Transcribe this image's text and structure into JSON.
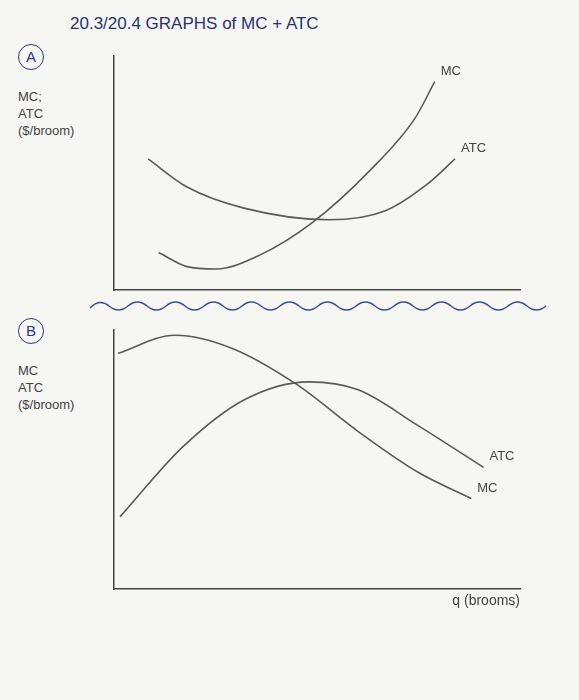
{
  "header": {
    "title": "20.3/20.4 GRAPHS of MC + ATC"
  },
  "chart_data": [
    {
      "panel": "A",
      "type": "line",
      "y_label": [
        "MC;",
        "ATC",
        "($/broom)"
      ],
      "xlim": [
        0,
        10
      ],
      "ylim": [
        0,
        10
      ],
      "tick_labels": false,
      "grid": false,
      "series": [
        {
          "name": "MC",
          "color": "#5a5a5a",
          "x": [
            1.1,
            1.8,
            2.5,
            3.6,
            4.9,
            6.3,
            7.4,
            7.9
          ],
          "values": [
            1.6,
            1.0,
            0.9,
            1.5,
            2.9,
            5.1,
            7.3,
            8.9
          ]
        },
        {
          "name": "ATC",
          "color": "#5a5a5a",
          "x": [
            0.84,
            1.8,
            3.2,
            5.3,
            6.7,
            7.7,
            8.4
          ],
          "values": [
            5.6,
            4.4,
            3.5,
            3.0,
            3.4,
            4.5,
            5.6
          ]
        }
      ]
    },
    {
      "panel": "B",
      "type": "line",
      "y_label": [
        "MC",
        "ATC",
        "($/broom)"
      ],
      "x_label": "q (brooms)",
      "xlim": [
        0,
        10
      ],
      "ylim": [
        0,
        10
      ],
      "tick_labels": false,
      "grid": false,
      "series": [
        {
          "name": "MC",
          "color": "#5a5a5a",
          "x": [
            0.1,
            1.5,
            2.9,
            4.5,
            6.0,
            7.5,
            8.8
          ],
          "values": [
            9.1,
            9.8,
            9.3,
            7.9,
            6.1,
            4.5,
            3.5
          ]
        },
        {
          "name": "ATC",
          "color": "#5a5a5a",
          "x": [
            0.15,
            1.7,
            3.2,
            4.8,
            6.0,
            7.5,
            9.1
          ],
          "values": [
            2.8,
            5.5,
            7.3,
            8.0,
            7.7,
            6.3,
            4.7
          ]
        }
      ]
    }
  ]
}
